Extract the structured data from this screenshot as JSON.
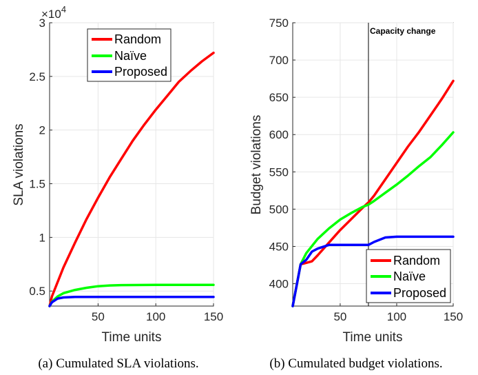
{
  "chart_data": [
    {
      "type": "line",
      "xlabel": "Time units",
      "ylabel": "SLA violations",
      "exponent_label": "×10",
      "exponent_power": "4",
      "xlim": [
        8,
        150
      ],
      "ylim": [
        3600,
        30000
      ],
      "xticks": [
        50,
        100,
        150
      ],
      "xtick_labels": [
        "50",
        "100",
        "150"
      ],
      "yticks": [
        5000,
        10000,
        15000,
        20000,
        25000,
        30000
      ],
      "ytick_labels": [
        "0.5",
        "1",
        "1.5",
        "2",
        "2.5",
        "3"
      ],
      "legend_position": "top-center",
      "caption": "(a) Cumulated SLA violations.",
      "series": [
        {
          "name": "Random",
          "color": "#ff0000",
          "x": [
            8,
            10,
            20,
            30,
            40,
            50,
            60,
            70,
            80,
            90,
            100,
            110,
            120,
            130,
            140,
            150
          ],
          "y": [
            3600,
            4500,
            7200,
            9500,
            11700,
            13700,
            15600,
            17300,
            19000,
            20500,
            21900,
            23200,
            24500,
            25500,
            26400,
            27200
          ]
        },
        {
          "name": "Naïve",
          "color": "#00ff00",
          "x": [
            8,
            10,
            15,
            20,
            30,
            40,
            50,
            60,
            70,
            80,
            100,
            120,
            150
          ],
          "y": [
            3600,
            4000,
            4500,
            4800,
            5100,
            5300,
            5450,
            5520,
            5550,
            5560,
            5570,
            5570,
            5570
          ]
        },
        {
          "name": "Proposed",
          "color": "#0000ff",
          "x": [
            8,
            10,
            15,
            20,
            30,
            50,
            100,
            150
          ],
          "y": [
            3600,
            3950,
            4300,
            4400,
            4450,
            4450,
            4450,
            4450
          ]
        }
      ]
    },
    {
      "type": "line",
      "xlabel": "Time units",
      "ylabel": "Budget violations",
      "xlim": [
        8,
        150
      ],
      "ylim": [
        370,
        750
      ],
      "xticks": [
        50,
        100,
        150
      ],
      "xtick_labels": [
        "50",
        "100",
        "150"
      ],
      "yticks": [
        400,
        450,
        500,
        550,
        600,
        650,
        700,
        750
      ],
      "ytick_labels": [
        "400",
        "450",
        "500",
        "550",
        "600",
        "650",
        "700",
        "750"
      ],
      "vline_x": 75,
      "annotation": "Capacity change",
      "legend_position": "bottom-right",
      "caption": "(b) Cumulated budget violations.",
      "series": [
        {
          "name": "Random",
          "color": "#ff0000",
          "x": [
            8,
            15,
            20,
            25,
            30,
            40,
            50,
            60,
            70,
            75,
            80,
            90,
            100,
            110,
            120,
            130,
            140,
            150
          ],
          "y": [
            370,
            426,
            428,
            430,
            438,
            455,
            472,
            487,
            502,
            509,
            518,
            540,
            562,
            584,
            604,
            626,
            648,
            672
          ]
        },
        {
          "name": "Naïve",
          "color": "#00ff00",
          "x": [
            8,
            15,
            20,
            30,
            40,
            50,
            60,
            70,
            75,
            80,
            90,
            100,
            110,
            120,
            130,
            140,
            150
          ],
          "y": [
            370,
            426,
            441,
            460,
            474,
            486,
            495,
            503,
            506,
            511,
            522,
            533,
            545,
            558,
            570,
            586,
            603
          ]
        },
        {
          "name": "Proposed",
          "color": "#0000ff",
          "x": [
            8,
            15,
            20,
            25,
            30,
            40,
            50,
            60,
            75,
            80,
            90,
            100,
            110,
            120,
            150
          ],
          "y": [
            370,
            426,
            432,
            443,
            447,
            452,
            452,
            452,
            452,
            456,
            462,
            463,
            463,
            463,
            463
          ]
        }
      ]
    }
  ]
}
